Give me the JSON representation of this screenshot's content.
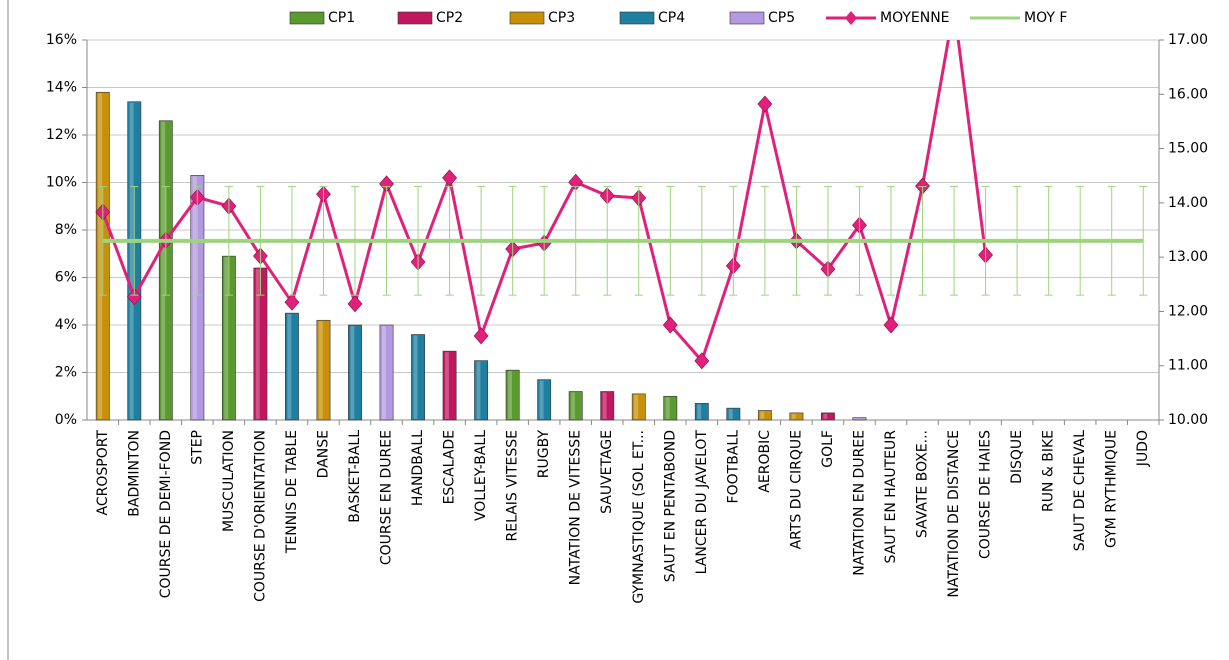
{
  "chart_data": {
    "type": "bar",
    "categories": [
      "ACROSPORT",
      "BADMINTON",
      "COURSE DE DEMI-FOND",
      "STEP",
      "MUSCULATION",
      "COURSE D'ORIENTATION",
      "TENNIS DE TABLE",
      "DANSE",
      "BASKET-BALL",
      "COURSE EN DUREE",
      "HANDBALL",
      "ESCALADE",
      "VOLLEY-BALL",
      "RELAIS VITESSE",
      "RUGBY",
      "NATATION DE VITESSE",
      "SAUVETAGE",
      "GYMNASTIQUE (SOL ET...",
      "SAUT EN PENTABOND",
      "LANCER DU JAVELOT",
      "FOOTBALL",
      "AEROBIC",
      "ARTS DU CIRQUE",
      "GOLF",
      "NATATION EN DUREE",
      "SAUT EN HAUTEUR",
      "SAVATE BOXE...",
      "NATATION DE DISTANCE",
      "COURSE DE HAIES",
      "DISQUE",
      "RUN & BIKE",
      "SAUT DE CHEVAL",
      "GYM RYTHMIQUE",
      "JUDO"
    ],
    "series": [
      {
        "name": "CP1",
        "color": "#5a9a2e",
        "values": [
          null,
          null,
          12.6,
          null,
          6.9,
          null,
          null,
          null,
          null,
          null,
          null,
          null,
          null,
          2.1,
          null,
          1.2,
          null,
          null,
          1.0,
          null,
          null,
          null,
          null,
          null,
          null,
          null,
          null,
          null,
          null,
          null,
          null,
          null,
          null,
          null
        ]
      },
      {
        "name": "CP2",
        "color": "#c0185e",
        "values": [
          null,
          null,
          null,
          null,
          null,
          6.4,
          null,
          null,
          null,
          null,
          null,
          2.9,
          null,
          null,
          null,
          null,
          1.2,
          null,
          null,
          null,
          null,
          null,
          null,
          0.3,
          null,
          null,
          null,
          null,
          null,
          null,
          null,
          null,
          null,
          null
        ]
      },
      {
        "name": "CP3",
        "color": "#c8900a",
        "values": [
          13.8,
          null,
          null,
          null,
          null,
          null,
          null,
          4.2,
          null,
          null,
          null,
          null,
          null,
          null,
          null,
          null,
          null,
          1.1,
          null,
          null,
          null,
          0.4,
          0.3,
          null,
          null,
          null,
          null,
          null,
          null,
          null,
          null,
          null,
          null,
          null
        ]
      },
      {
        "name": "CP4",
        "color": "#1f7fa0",
        "values": [
          null,
          13.4,
          null,
          null,
          null,
          null,
          4.5,
          null,
          4.0,
          null,
          3.6,
          null,
          2.5,
          null,
          1.7,
          null,
          null,
          null,
          null,
          0.7,
          0.5,
          null,
          null,
          null,
          null,
          null,
          null,
          null,
          null,
          null,
          null,
          null,
          null,
          null
        ]
      },
      {
        "name": "CP5",
        "color": "#b39ae0",
        "values": [
          null,
          null,
          null,
          10.3,
          null,
          null,
          null,
          null,
          null,
          4.0,
          null,
          null,
          null,
          null,
          null,
          null,
          null,
          null,
          null,
          null,
          null,
          null,
          null,
          null,
          0.1,
          null,
          null,
          null,
          null,
          null,
          null,
          null,
          null,
          null
        ]
      },
      {
        "name": "MOYENNE",
        "color": "#e0207a",
        "axis": "y2",
        "type": "line",
        "values": [
          13.83,
          12.27,
          13.31,
          14.1,
          13.94,
          13.02,
          12.17,
          14.16,
          12.14,
          14.35,
          12.91,
          14.46,
          11.55,
          13.15,
          13.26,
          14.38,
          14.13,
          14.09,
          11.75,
          11.09,
          12.84,
          15.82,
          13.3,
          12.78,
          13.59,
          11.75,
          14.31,
          17.6,
          13.04,
          null,
          null,
          null,
          null,
          null
        ]
      },
      {
        "name": "MOY F",
        "color": "#9ed47e",
        "axis": "y2",
        "type": "line",
        "values": [
          13.3,
          13.3,
          13.3,
          13.3,
          13.3,
          13.3,
          13.3,
          13.3,
          13.3,
          13.3,
          13.3,
          13.3,
          13.3,
          13.3,
          13.3,
          13.3,
          13.3,
          13.3,
          13.3,
          13.3,
          13.3,
          13.3,
          13.3,
          13.3,
          13.3,
          13.3,
          13.3,
          13.3,
          13.3,
          13.3,
          13.3,
          13.3,
          13.3,
          13.3
        ],
        "errors": [
          1.0,
          1.0,
          1.0,
          1.0,
          1.0,
          1.0,
          1.0,
          1.0,
          1.0,
          1.0,
          1.0,
          1.0,
          1.0,
          1.0,
          1.0,
          1.0,
          1.0,
          1.0,
          1.0,
          1.0,
          1.0,
          1.0,
          1.0,
          1.0,
          1.0,
          1.0,
          1.0,
          1.0,
          1.0,
          1.0,
          1.0,
          1.0,
          1.0,
          1.0
        ]
      }
    ],
    "ylim": [
      0,
      16
    ],
    "yticks": [
      {
        "value": 0,
        "label": "0%"
      },
      {
        "value": 2,
        "label": "2%"
      },
      {
        "value": 4,
        "label": "4%"
      },
      {
        "value": 6,
        "label": "6%"
      },
      {
        "value": 8,
        "label": "8%"
      },
      {
        "value": 10,
        "label": "10%"
      },
      {
        "value": 12,
        "label": "12%"
      },
      {
        "value": 14,
        "label": "14%"
      },
      {
        "value": 16,
        "label": "16%"
      }
    ],
    "y2lim": [
      10,
      17
    ],
    "y2ticks": [
      {
        "value": 10,
        "label": "10.00"
      },
      {
        "value": 11,
        "label": "11.00"
      },
      {
        "value": 12,
        "label": "12.00"
      },
      {
        "value": 13,
        "label": "13.00"
      },
      {
        "value": 14,
        "label": "14.00"
      },
      {
        "value": 15,
        "label": "15.00"
      },
      {
        "value": 16,
        "label": "16.00"
      },
      {
        "value": 17,
        "label": "17.00"
      }
    ],
    "stacked": true,
    "grid": true,
    "legend": "top"
  }
}
